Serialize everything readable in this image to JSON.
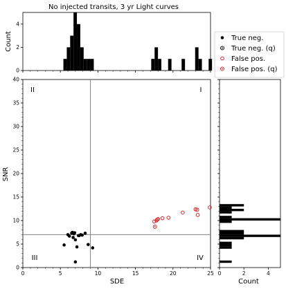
{
  "chart_data": {
    "type": "scatter",
    "title": "No injected transits, 3 yr Light curves",
    "xlabel": "SDE",
    "ylabel": "SNR",
    "xlim": [
      0,
      25
    ],
    "ylim": [
      0,
      40
    ],
    "xticks": [
      "0",
      "5",
      "10",
      "15",
      "20",
      "25"
    ],
    "yticks": [
      "0",
      "5",
      "10",
      "15",
      "20",
      "25",
      "30",
      "35",
      "40"
    ],
    "threshold_lines": {
      "SDE": 9,
      "SNR": 7
    },
    "quadrants": [
      "I",
      "II",
      "III",
      "IV"
    ],
    "series": [
      {
        "name": "True neg.",
        "marker": "filled",
        "color": "#000000",
        "points": [
          [
            5.5,
            4.8
          ],
          [
            6.2,
            6.7
          ],
          [
            6.5,
            7.3
          ],
          [
            6.6,
            7.5
          ],
          [
            6.7,
            6.4
          ],
          [
            6.8,
            7.2
          ],
          [
            6.9,
            7.4
          ],
          [
            7.0,
            5.9
          ],
          [
            7.2,
            4.4
          ],
          [
            7.4,
            6.8
          ],
          [
            7.5,
            6.8
          ],
          [
            7.9,
            6.9
          ],
          [
            8.3,
            7.3
          ],
          [
            8.7,
            4.9
          ],
          [
            9.3,
            4.2
          ],
          [
            7.0,
            1.2
          ],
          [
            6.0,
            7.0
          ],
          [
            7.7,
            7.0
          ]
        ]
      },
      {
        "name": "True neg. (q)",
        "marker": "dot-in-circle",
        "color": "#000000",
        "points": []
      },
      {
        "name": "False pos.",
        "marker": "open",
        "color": "#d62728",
        "points": [
          [
            17.5,
            9.8
          ],
          [
            17.8,
            10.0
          ],
          [
            17.9,
            10.2
          ],
          [
            18.0,
            10.3
          ],
          [
            18.6,
            10.5
          ],
          [
            19.4,
            10.6
          ],
          [
            21.3,
            11.7
          ],
          [
            23.0,
            12.4
          ],
          [
            23.3,
            11.2
          ],
          [
            24.9,
            12.8
          ]
        ]
      },
      {
        "name": "False pos. (q)",
        "marker": "dot-in-circle",
        "color": "#d62728",
        "points": [
          [
            17.6,
            8.7
          ],
          [
            23.2,
            12.3
          ]
        ]
      }
    ],
    "top_histogram": {
      "ylabel": "Count",
      "yticks": [
        "0",
        "2",
        "4"
      ],
      "ylim": [
        0,
        5
      ],
      "bin_width": 0.45,
      "bins": [
        [
          5.4,
          1
        ],
        [
          5.85,
          2
        ],
        [
          6.3,
          3
        ],
        [
          6.75,
          5
        ],
        [
          7.2,
          4
        ],
        [
          7.65,
          2
        ],
        [
          8.1,
          1
        ],
        [
          8.55,
          1
        ],
        [
          9.0,
          1
        ],
        [
          17.1,
          1
        ],
        [
          17.55,
          2
        ],
        [
          18.0,
          1
        ],
        [
          19.35,
          1
        ],
        [
          21.15,
          1
        ],
        [
          22.95,
          2
        ],
        [
          23.4,
          1
        ],
        [
          24.75,
          1
        ]
      ]
    },
    "right_histogram": {
      "xlabel": "Count",
      "xticks": [
        "0",
        "2",
        "4"
      ],
      "xlim": [
        0,
        5
      ],
      "bin_height": 0.5,
      "bins": [
        [
          1.0,
          1
        ],
        [
          4.0,
          1
        ],
        [
          4.5,
          1
        ],
        [
          5.0,
          1
        ],
        [
          6.0,
          2
        ],
        [
          6.5,
          5
        ],
        [
          7.0,
          2
        ],
        [
          7.5,
          2
        ],
        [
          9.5,
          1
        ],
        [
          10.0,
          5
        ],
        [
          10.5,
          1
        ],
        [
          11.5,
          1
        ],
        [
          12.0,
          2
        ],
        [
          12.5,
          1
        ],
        [
          13.0,
          2
        ]
      ]
    }
  },
  "legend": {
    "items": [
      {
        "label": "True neg.",
        "marker": "filled",
        "color": "#000000"
      },
      {
        "label": "True neg. (q)",
        "marker": "dot-in-circle",
        "color": "#000000"
      },
      {
        "label": "False pos.",
        "marker": "open",
        "color": "#d62728"
      },
      {
        "label": "False pos. (q)",
        "marker": "dot-in-circle",
        "color": "#d62728"
      }
    ]
  },
  "colors": {
    "axes": "#000000",
    "threshold_line": "#808080",
    "false_pos": "#d62728",
    "true_neg": "#000000"
  }
}
